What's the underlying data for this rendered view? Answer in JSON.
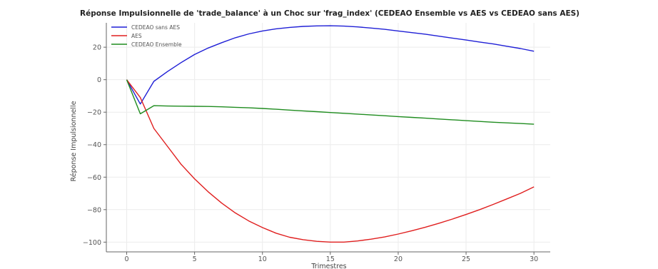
{
  "chart_data": {
    "type": "line",
    "title": "Réponse Impulsionnelle de 'trade_balance' à un Choc sur 'frag_index' (CEDEAO Ensemble vs AES vs CEDEAO sans AES)",
    "xlabel": "Trimestres",
    "ylabel": "Réponse Impulsionnelle",
    "xlim": [
      -1.5,
      31.2
    ],
    "ylim": [
      -106,
      35
    ],
    "xticks": [
      0,
      5,
      10,
      15,
      20,
      25,
      30
    ],
    "yticks": [
      20,
      0,
      -20,
      -40,
      -60,
      -80,
      -100
    ],
    "grid": true,
    "legend_position": "top-left",
    "x": [
      0,
      1,
      2,
      3,
      4,
      5,
      6,
      7,
      8,
      9,
      10,
      11,
      12,
      13,
      14,
      15,
      16,
      17,
      18,
      19,
      20,
      21,
      22,
      23,
      24,
      25,
      26,
      27,
      28,
      29,
      30
    ],
    "series": [
      {
        "name": "CEDEAO sans AES",
        "color": "#1f1fd6",
        "values": [
          0,
          -15,
          -1,
          5,
          10.5,
          15.5,
          19.5,
          22.8,
          25.8,
          28.2,
          30,
          31.3,
          32.2,
          32.8,
          33.1,
          33.2,
          33,
          32.5,
          31.8,
          31,
          30,
          29,
          28,
          26.8,
          25.6,
          24.4,
          23.2,
          22,
          20.6,
          19.2,
          17.5
        ]
      },
      {
        "name": "AES",
        "color": "#e01f1f",
        "values": [
          0,
          -11,
          -30,
          -41,
          -52,
          -61,
          -69,
          -76,
          -82,
          -87,
          -91,
          -94.5,
          -97,
          -98.5,
          -99.5,
          -100,
          -100,
          -99.3,
          -98.2,
          -96.8,
          -95,
          -93,
          -90.8,
          -88.4,
          -85.8,
          -83,
          -80,
          -76.8,
          -73.4,
          -70,
          -66
        ]
      },
      {
        "name": "CEDEAO Ensemble",
        "color": "#1f8c1f",
        "values": [
          0,
          -21,
          -16,
          -16.2,
          -16.3,
          -16.4,
          -16.5,
          -16.7,
          -17,
          -17.3,
          -17.7,
          -18.2,
          -18.7,
          -19.2,
          -19.7,
          -20.2,
          -20.7,
          -21.2,
          -21.7,
          -22.2,
          -22.7,
          -23.2,
          -23.7,
          -24.2,
          -24.7,
          -25.2,
          -25.7,
          -26.2,
          -26.6,
          -27,
          -27.4
        ]
      }
    ]
  }
}
